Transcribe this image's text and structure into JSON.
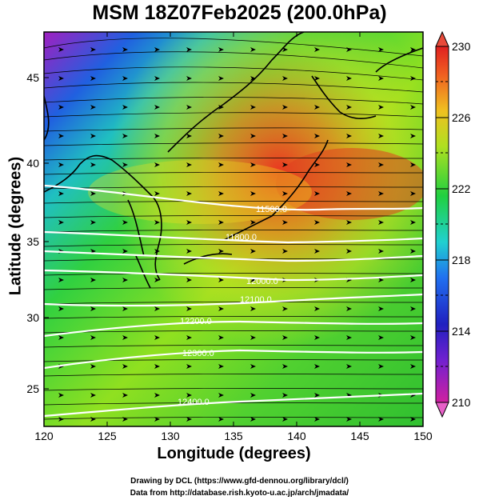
{
  "title": "MSM 18Z07Feb2025 (200.0hPa)",
  "x_axis": {
    "label": "Longitude (degrees)",
    "ticks": [
      "120",
      "125",
      "130",
      "135",
      "140",
      "145",
      "150"
    ]
  },
  "y_axis": {
    "label": "Latitude  (degrees)",
    "ticks": [
      "25",
      "30",
      "35",
      "40",
      "45"
    ]
  },
  "colorbar": {
    "ticks": [
      "210",
      "214",
      "218",
      "222",
      "226",
      "230"
    ],
    "min": 210,
    "max": 230
  },
  "contour_labels": [
    "11500.0",
    "11800.0",
    "12000.0",
    "12100.0",
    "12200.0",
    "12300.0",
    "12400.0"
  ],
  "credits": {
    "line1": "Drawing by DCL (https://www.gfd-dennou.org/library/dcl/)",
    "line2": "Data from http://database.rish.kyoto-u.ac.jp/arch/jmadata/"
  },
  "colors": {
    "background": "#ffffff",
    "contour": "#ffffff",
    "vectors": "#000000",
    "coast": "#000000"
  }
}
